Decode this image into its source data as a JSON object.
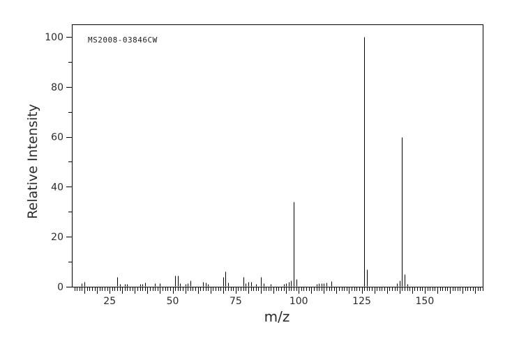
{
  "window": {
    "background_color": "#ffffff",
    "foreground_color": "#000000",
    "text_color": "#2a2a2a"
  },
  "chart_data": {
    "type": "bar",
    "subtype": "mass-spectrum-stick-plot",
    "title": "MS2008-03846CW",
    "xlabel": "m/z",
    "ylabel": "Relative Intensity",
    "xlim": [
      10,
      173
    ],
    "ylim": [
      0,
      105
    ],
    "x_tick_labels": [
      25,
      50,
      75,
      100,
      125,
      150
    ],
    "x_minor_tick_step": 1,
    "x_medium_tick_step": 5,
    "y_tick_labels": [
      0,
      20,
      40,
      60,
      80,
      100
    ],
    "y_minor_tick_step": 10,
    "y_major_tick_step": 20,
    "grid": false,
    "legend": null,
    "base_peak_mz": 126,
    "peaks_mz_intensity": [
      [
        14,
        1.5
      ],
      [
        15,
        2
      ],
      [
        28,
        4
      ],
      [
        29,
        1
      ],
      [
        31,
        1
      ],
      [
        32,
        1
      ],
      [
        37,
        1.2
      ],
      [
        38,
        1.2
      ],
      [
        39,
        1.6
      ],
      [
        43,
        1.5
      ],
      [
        45,
        1.5
      ],
      [
        51,
        4.5
      ],
      [
        52,
        4.5
      ],
      [
        53,
        1.5
      ],
      [
        55,
        1.2
      ],
      [
        56,
        1.3
      ],
      [
        57,
        2.5
      ],
      [
        62,
        2
      ],
      [
        63,
        1.8
      ],
      [
        64,
        1.2
      ],
      [
        70,
        4
      ],
      [
        71,
        6
      ],
      [
        72,
        1.6
      ],
      [
        78,
        4
      ],
      [
        79,
        1.4
      ],
      [
        80,
        2
      ],
      [
        81,
        2
      ],
      [
        83,
        1.2
      ],
      [
        85,
        4
      ],
      [
        86,
        1.4
      ],
      [
        89,
        1
      ],
      [
        94,
        1
      ],
      [
        95,
        1.4
      ],
      [
        96,
        2
      ],
      [
        97,
        2.5
      ],
      [
        98,
        34
      ],
      [
        99,
        3
      ],
      [
        107,
        1.2
      ],
      [
        108,
        1.5
      ],
      [
        109,
        1.5
      ],
      [
        110,
        1.5
      ],
      [
        111,
        1.8
      ],
      [
        113,
        2.2
      ],
      [
        126,
        100
      ],
      [
        127,
        7
      ],
      [
        139,
        1.5
      ],
      [
        140,
        2.5
      ],
      [
        141,
        60
      ],
      [
        142,
        5
      ],
      [
        143,
        1
      ]
    ]
  }
}
